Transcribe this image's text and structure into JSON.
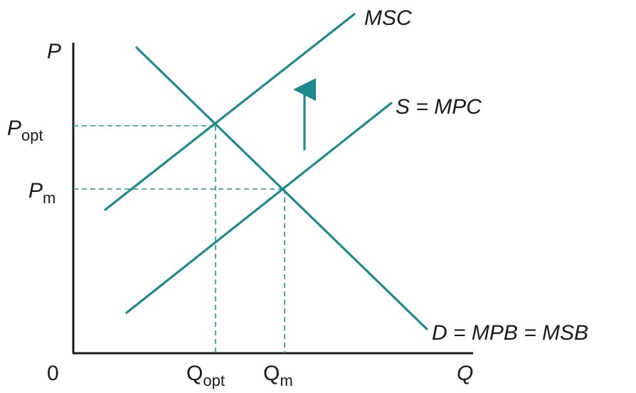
{
  "axes": {
    "y_label": "P",
    "x_label": "Q",
    "origin_label": "0"
  },
  "price_ticks": [
    {
      "base": "P",
      "sub": "opt"
    },
    {
      "base": "P",
      "sub": "m"
    }
  ],
  "quantity_ticks": [
    {
      "base": "Q",
      "sub": "opt"
    },
    {
      "base": "Q",
      "sub": "m"
    }
  ],
  "curves": {
    "msc": "MSC",
    "supply": "S = MPC",
    "demand": "D = MPB = MSB"
  },
  "colors": {
    "curve": "#1f8a8c",
    "axis": "#1a1a1a",
    "text": "#1a1a1a"
  },
  "annotations": {
    "arrow": "up-arrow (MSC above MPC)"
  }
}
